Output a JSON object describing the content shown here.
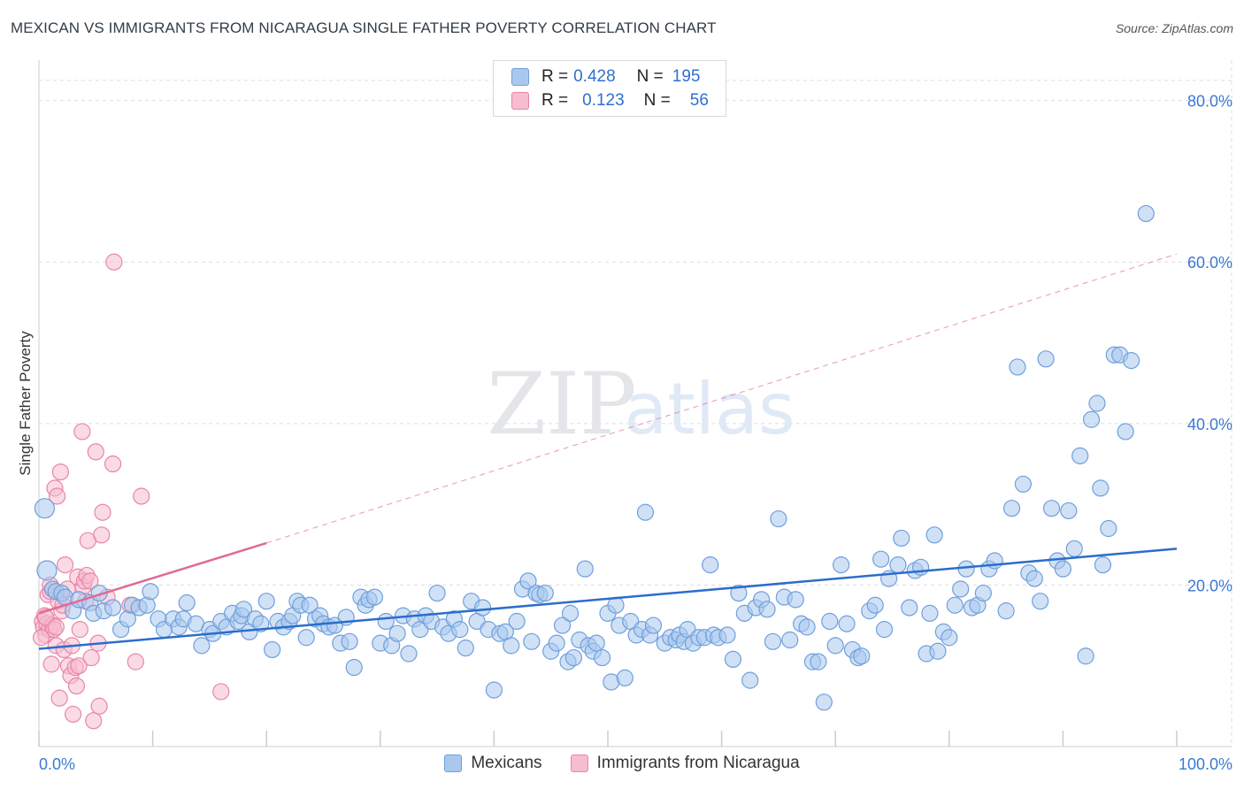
{
  "title": "MEXICAN VS IMMIGRANTS FROM NICARAGUA SINGLE FATHER POVERTY CORRELATION CHART",
  "source": "Source: ZipAtlas.com",
  "watermark": {
    "zip": "ZIP",
    "atlas": "atlas"
  },
  "legend": {
    "rows": [
      {
        "r_label": "R =",
        "r_value": "0.428",
        "n_label": "N =",
        "n_value": "195"
      },
      {
        "r_label": "R =",
        "r_value": "0.123",
        "n_label": "N =",
        "n_value": "56"
      }
    ]
  },
  "colors": {
    "blue_fill": "#aac8ee",
    "blue_stroke": "#6f9fdc",
    "blue_line": "#2b6dcc",
    "pink_fill": "#f6bcd0",
    "pink_stroke": "#e886a8",
    "pink_line": "#e06a96",
    "axis_text": "#3b78d4",
    "grid": "#dddddd"
  },
  "chart_data": {
    "type": "scatter",
    "title": "MEXICAN VS IMMIGRANTS FROM NICARAGUA SINGLE FATHER POVERTY CORRELATION CHART",
    "xlabel": "",
    "ylabel": "Single Father Poverty",
    "xlim": [
      0,
      100
    ],
    "ylim": [
      0,
      85
    ],
    "x_tick_labels": [
      "0.0%",
      "100.0%"
    ],
    "y_ticks": [
      20,
      40,
      60,
      80
    ],
    "y_tick_labels": [
      "20.0%",
      "40.0%",
      "60.0%",
      "80.0%"
    ],
    "grid": true,
    "legend_position": "bottom",
    "series": [
      {
        "name": "Mexicans",
        "r": 0.428,
        "n": 195,
        "trend": {
          "x0": 0,
          "y0": 12.1,
          "x1": 100,
          "y1": 24.5,
          "dashed_to": null
        },
        "points": [
          [
            0.5,
            29.5
          ],
          [
            0.7,
            21.8
          ],
          [
            1.2,
            19.5
          ],
          [
            1.5,
            19.2
          ],
          [
            2.0,
            19.0
          ],
          [
            2.3,
            18.5
          ],
          [
            3.0,
            16.8
          ],
          [
            3.5,
            18.2
          ],
          [
            4.5,
            17.8
          ],
          [
            4.8,
            16.5
          ],
          [
            5.3,
            19.0
          ],
          [
            5.7,
            16.8
          ],
          [
            6.5,
            17.2
          ],
          [
            7.2,
            14.5
          ],
          [
            7.8,
            15.8
          ],
          [
            8.2,
            17.5
          ],
          [
            8.8,
            17.2
          ],
          [
            9.5,
            17.5
          ],
          [
            9.8,
            19.2
          ],
          [
            10.5,
            15.8
          ],
          [
            11.0,
            14.5
          ],
          [
            11.8,
            15.8
          ],
          [
            12.3,
            14.8
          ],
          [
            12.7,
            15.8
          ],
          [
            13.0,
            17.8
          ],
          [
            13.8,
            15.2
          ],
          [
            14.3,
            12.5
          ],
          [
            15.0,
            14.5
          ],
          [
            15.3,
            14.0
          ],
          [
            16.0,
            15.5
          ],
          [
            16.5,
            14.8
          ],
          [
            17.0,
            16.5
          ],
          [
            17.5,
            15.5
          ],
          [
            17.8,
            16.2
          ],
          [
            18.0,
            17.0
          ],
          [
            18.5,
            14.2
          ],
          [
            19.0,
            15.8
          ],
          [
            19.5,
            15.2
          ],
          [
            20.0,
            18.0
          ],
          [
            20.5,
            12.0
          ],
          [
            21.0,
            15.5
          ],
          [
            21.5,
            14.8
          ],
          [
            22.0,
            15.5
          ],
          [
            22.3,
            16.2
          ],
          [
            22.7,
            18.0
          ],
          [
            23.0,
            17.5
          ],
          [
            23.5,
            13.5
          ],
          [
            23.8,
            17.5
          ],
          [
            24.3,
            15.8
          ],
          [
            24.7,
            16.2
          ],
          [
            25.0,
            15.2
          ],
          [
            25.5,
            14.8
          ],
          [
            26.0,
            15.0
          ],
          [
            26.5,
            12.8
          ],
          [
            27.0,
            16.0
          ],
          [
            27.3,
            13.0
          ],
          [
            27.7,
            9.8
          ],
          [
            28.3,
            18.5
          ],
          [
            28.7,
            17.5
          ],
          [
            29.0,
            18.2
          ],
          [
            29.5,
            18.5
          ],
          [
            30.0,
            12.8
          ],
          [
            30.5,
            15.5
          ],
          [
            31.0,
            12.5
          ],
          [
            31.5,
            14.0
          ],
          [
            32.0,
            16.2
          ],
          [
            32.5,
            11.5
          ],
          [
            33.0,
            15.8
          ],
          [
            33.5,
            14.5
          ],
          [
            34.0,
            16.2
          ],
          [
            34.5,
            15.5
          ],
          [
            35.0,
            19.0
          ],
          [
            35.5,
            14.8
          ],
          [
            36.0,
            14.0
          ],
          [
            36.5,
            15.8
          ],
          [
            37.0,
            14.5
          ],
          [
            37.5,
            12.2
          ],
          [
            38.0,
            18.0
          ],
          [
            38.5,
            15.5
          ],
          [
            39.0,
            17.2
          ],
          [
            39.5,
            14.5
          ],
          [
            40.0,
            7.0
          ],
          [
            40.5,
            14.0
          ],
          [
            41.0,
            14.2
          ],
          [
            41.5,
            12.5
          ],
          [
            42.0,
            15.5
          ],
          [
            42.5,
            19.5
          ],
          [
            43.0,
            20.5
          ],
          [
            43.3,
            13.0
          ],
          [
            43.7,
            19.0
          ],
          [
            44.0,
            18.8
          ],
          [
            44.5,
            19.0
          ],
          [
            45.0,
            11.8
          ],
          [
            45.5,
            12.8
          ],
          [
            46.0,
            15.0
          ],
          [
            46.5,
            10.5
          ],
          [
            46.7,
            16.5
          ],
          [
            47.0,
            11.0
          ],
          [
            47.5,
            13.2
          ],
          [
            48.0,
            22.0
          ],
          [
            48.3,
            12.5
          ],
          [
            48.7,
            11.8
          ],
          [
            49.0,
            12.8
          ],
          [
            49.5,
            11.0
          ],
          [
            50.0,
            16.5
          ],
          [
            50.3,
            8.0
          ],
          [
            50.7,
            17.5
          ],
          [
            51.0,
            15.0
          ],
          [
            51.5,
            8.5
          ],
          [
            52.0,
            15.5
          ],
          [
            52.5,
            13.8
          ],
          [
            53.0,
            14.5
          ],
          [
            53.3,
            29.0
          ],
          [
            53.7,
            13.8
          ],
          [
            54.0,
            15.0
          ],
          [
            55.0,
            12.8
          ],
          [
            55.5,
            13.5
          ],
          [
            56.0,
            13.2
          ],
          [
            56.3,
            13.8
          ],
          [
            56.7,
            13.0
          ],
          [
            57.0,
            14.5
          ],
          [
            57.5,
            12.8
          ],
          [
            58.0,
            13.5
          ],
          [
            58.5,
            13.5
          ],
          [
            59.0,
            22.5
          ],
          [
            59.3,
            13.8
          ],
          [
            59.7,
            13.5
          ],
          [
            60.5,
            13.8
          ],
          [
            61.0,
            10.8
          ],
          [
            61.5,
            19.0
          ],
          [
            62.0,
            16.5
          ],
          [
            62.5,
            8.2
          ],
          [
            63.0,
            17.2
          ],
          [
            63.5,
            18.2
          ],
          [
            64.0,
            17.0
          ],
          [
            64.5,
            13.0
          ],
          [
            65.0,
            28.2
          ],
          [
            65.5,
            18.5
          ],
          [
            66.0,
            13.2
          ],
          [
            66.5,
            18.2
          ],
          [
            67.0,
            15.2
          ],
          [
            67.5,
            14.8
          ],
          [
            68.0,
            10.5
          ],
          [
            68.5,
            10.5
          ],
          [
            69.0,
            5.5
          ],
          [
            69.5,
            15.5
          ],
          [
            70.0,
            12.5
          ],
          [
            70.5,
            22.5
          ],
          [
            71.0,
            15.2
          ],
          [
            71.5,
            12.0
          ],
          [
            72.0,
            11.0
          ],
          [
            72.3,
            11.2
          ],
          [
            73.0,
            16.8
          ],
          [
            73.5,
            17.5
          ],
          [
            74.0,
            23.2
          ],
          [
            74.3,
            14.5
          ],
          [
            74.7,
            20.8
          ],
          [
            75.5,
            22.5
          ],
          [
            75.8,
            25.8
          ],
          [
            76.5,
            17.2
          ],
          [
            77.0,
            21.8
          ],
          [
            77.5,
            22.2
          ],
          [
            78.0,
            11.5
          ],
          [
            78.3,
            16.5
          ],
          [
            78.7,
            26.2
          ],
          [
            79.0,
            11.8
          ],
          [
            79.5,
            14.2
          ],
          [
            80.0,
            13.5
          ],
          [
            80.5,
            17.5
          ],
          [
            81.0,
            19.5
          ],
          [
            81.5,
            22.0
          ],
          [
            82.0,
            17.2
          ],
          [
            82.5,
            17.5
          ],
          [
            83.0,
            19.0
          ],
          [
            83.5,
            22.0
          ],
          [
            84.0,
            23.0
          ],
          [
            85.0,
            16.8
          ],
          [
            85.5,
            29.5
          ],
          [
            86.0,
            47.0
          ],
          [
            86.5,
            32.5
          ],
          [
            87.0,
            21.5
          ],
          [
            87.5,
            20.8
          ],
          [
            88.0,
            18.0
          ],
          [
            88.5,
            48.0
          ],
          [
            89.0,
            29.5
          ],
          [
            89.5,
            23.0
          ],
          [
            90.0,
            22.0
          ],
          [
            90.5,
            29.2
          ],
          [
            91.0,
            24.5
          ],
          [
            91.5,
            36.0
          ],
          [
            92.5,
            40.5
          ],
          [
            93.0,
            42.5
          ],
          [
            93.3,
            32.0
          ],
          [
            93.5,
            22.5
          ],
          [
            94.0,
            27.0
          ],
          [
            94.5,
            48.5
          ],
          [
            95.0,
            48.5
          ],
          [
            95.5,
            39.0
          ],
          [
            96.0,
            47.8
          ],
          [
            97.3,
            66.0
          ],
          [
            92.0,
            11.2
          ]
        ]
      },
      {
        "name": "Immigrants from Nicaragua",
        "r": 0.123,
        "n": 56,
        "trend": {
          "x0": 0,
          "y0": 16.5,
          "x1": 20,
          "y1": 25.2,
          "dashed_to": {
            "x": 100,
            "y": 61.0
          }
        },
        "points": [
          [
            0.3,
            15.5
          ],
          [
            0.4,
            14.8
          ],
          [
            0.5,
            16.2
          ],
          [
            0.6,
            13.8
          ],
          [
            0.7,
            15.2
          ],
          [
            0.8,
            18.8
          ],
          [
            0.9,
            14.5
          ],
          [
            1.0,
            19.2
          ],
          [
            1.1,
            10.2
          ],
          [
            1.2,
            15.0
          ],
          [
            1.3,
            14.5
          ],
          [
            1.4,
            32.0
          ],
          [
            1.5,
            12.5
          ],
          [
            1.6,
            31.0
          ],
          [
            1.7,
            18.0
          ],
          [
            1.8,
            6.0
          ],
          [
            1.9,
            34.0
          ],
          [
            2.0,
            16.8
          ],
          [
            2.2,
            12.0
          ],
          [
            2.3,
            22.5
          ],
          [
            2.5,
            19.5
          ],
          [
            2.6,
            10.0
          ],
          [
            2.8,
            8.8
          ],
          [
            2.9,
            12.5
          ],
          [
            3.0,
            4.0
          ],
          [
            3.2,
            9.8
          ],
          [
            3.3,
            7.5
          ],
          [
            3.4,
            21.0
          ],
          [
            3.5,
            10.0
          ],
          [
            3.6,
            14.5
          ],
          [
            3.8,
            39.0
          ],
          [
            3.9,
            19.8
          ],
          [
            4.0,
            20.5
          ],
          [
            4.2,
            21.2
          ],
          [
            4.3,
            25.5
          ],
          [
            4.5,
            20.5
          ],
          [
            4.6,
            11.0
          ],
          [
            4.8,
            3.2
          ],
          [
            5.0,
            36.5
          ],
          [
            5.2,
            12.8
          ],
          [
            5.3,
            5.0
          ],
          [
            5.5,
            26.2
          ],
          [
            5.6,
            29.0
          ],
          [
            6.0,
            18.5
          ],
          [
            6.5,
            35.0
          ],
          [
            6.6,
            60.0
          ],
          [
            8.0,
            17.5
          ],
          [
            8.5,
            10.5
          ],
          [
            9.0,
            31.0
          ],
          [
            16.0,
            6.8
          ],
          [
            0.2,
            13.5
          ],
          [
            1.0,
            20.0
          ],
          [
            2.1,
            17.5
          ],
          [
            4.1,
            18.0
          ],
          [
            0.6,
            16.0
          ],
          [
            1.5,
            14.8
          ]
        ]
      }
    ]
  }
}
